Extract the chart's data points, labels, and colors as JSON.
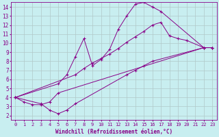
{
  "xlabel": "Windchill (Refroidissement éolien,°C)",
  "bg_color": "#c8eef0",
  "line_color": "#880088",
  "grid_color": "#b0c8c8",
  "xlim": [
    -0.5,
    23.5
  ],
  "ylim": [
    1.5,
    14.5
  ],
  "xticks": [
    0,
    1,
    2,
    3,
    4,
    5,
    6,
    7,
    8,
    9,
    10,
    11,
    12,
    13,
    14,
    15,
    16,
    17,
    18,
    19,
    20,
    21,
    22,
    23
  ],
  "yticks": [
    2,
    3,
    4,
    5,
    6,
    7,
    8,
    9,
    10,
    11,
    12,
    13,
    14
  ],
  "series": [
    {
      "x": [
        0,
        1,
        2,
        3,
        4,
        5,
        22,
        23
      ],
      "y": [
        4.0,
        3.5,
        3.2,
        3.2,
        3.5,
        4.5,
        9.5,
        9.5
      ]
    },
    {
      "x": [
        0,
        3,
        4,
        5,
        6,
        7,
        13,
        14,
        15,
        16,
        22,
        23
      ],
      "y": [
        4.0,
        3.3,
        2.6,
        2.2,
        2.6,
        3.3,
        6.5,
        7.0,
        7.5,
        8.0,
        9.5,
        9.5
      ]
    },
    {
      "x": [
        0,
        5,
        6,
        7,
        8,
        9,
        10,
        11,
        12,
        13,
        14,
        15,
        16,
        17,
        22,
        23
      ],
      "y": [
        4.0,
        5.5,
        6.5,
        8.5,
        10.5,
        7.5,
        8.2,
        9.3,
        11.5,
        13.0,
        14.3,
        14.5,
        14.0,
        13.5,
        9.5,
        9.5
      ]
    },
    {
      "x": [
        0,
        7,
        8,
        9,
        10,
        11,
        12,
        13,
        14,
        15,
        16,
        17,
        18,
        19,
        20,
        22,
        23
      ],
      "y": [
        4.0,
        6.5,
        7.2,
        7.8,
        8.3,
        8.8,
        9.4,
        10.1,
        10.7,
        11.3,
        12.0,
        12.3,
        10.8,
        10.5,
        10.3,
        9.5,
        9.5
      ]
    }
  ]
}
